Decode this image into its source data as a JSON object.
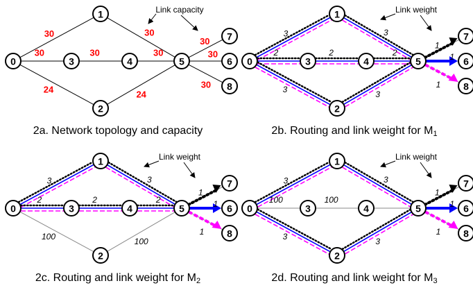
{
  "colors": {
    "capacity": "#ff0000",
    "route_blue": "#0000ff",
    "route_magenta": "#ff00ff",
    "dotted": "#000000"
  },
  "node_labels": [
    "0",
    "1",
    "2",
    "3",
    "4",
    "5",
    "6",
    "7",
    "8"
  ],
  "panels": [
    {
      "caption": "2a. Network topology and capacity",
      "caption_sub": "",
      "annotation": "Link capacity",
      "capacities": {
        "0-1": "30",
        "0-3": "30",
        "0-2": "24",
        "3-4": "30",
        "4-5": "30",
        "1-5": "30",
        "2-5": "24",
        "5-7": "30",
        "5-6": "30",
        "5-8": "30"
      }
    },
    {
      "caption": "2b. Routing and link weight for M",
      "caption_sub": "1",
      "annotation": "Link weight",
      "weights": {
        "0-1": "3",
        "1-5": "3",
        "0-3": "2",
        "3-4": "2",
        "4-5": "2",
        "0-2": "3",
        "2-5": "3",
        "5-7": "1",
        "5-6": "1",
        "5-8": "1"
      }
    },
    {
      "caption": "2c. Routing and link weight for M",
      "caption_sub": "2",
      "annotation": "Link weight",
      "weights": {
        "0-1": "3",
        "1-5": "3",
        "0-3": "2",
        "3-4": "2",
        "4-5": "2",
        "0-2": "100",
        "2-5": "100",
        "5-7": "1",
        "5-6": "1",
        "5-8": "1"
      }
    },
    {
      "caption": "2d. Routing and link weight for M",
      "caption_sub": "3",
      "annotation": "Link weight",
      "weights": {
        "0-1": "3",
        "1-5": "3",
        "0-3": "100",
        "3-4": "100",
        "4-5": "",
        "0-2": "3",
        "2-5": "3",
        "5-7": "1",
        "5-6": "1",
        "5-8": "1"
      }
    }
  ]
}
